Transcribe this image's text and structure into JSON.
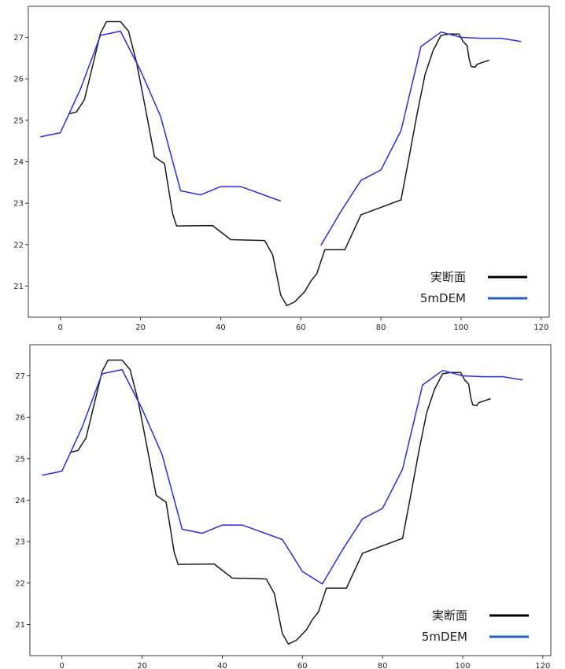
{
  "chart_data": [
    {
      "type": "line",
      "title": "",
      "xlabel": "",
      "ylabel": "",
      "xlim": [
        -8,
        122
      ],
      "ylim": [
        20.25,
        27.75
      ],
      "xticks": [
        0,
        20,
        40,
        60,
        80,
        100,
        120
      ],
      "yticks": [
        21,
        22,
        23,
        24,
        25,
        26,
        27
      ],
      "grid": false,
      "legend_position": "bottom-right",
      "legend": [
        {
          "label": "実断面",
          "color": "#000000"
        },
        {
          "label": "5mDEM",
          "color": "#1f5fbf"
        }
      ],
      "series": [
        {
          "name": "実断面",
          "color": "#1a1a1a",
          "segments": [
            [
              [
                2,
                25.15
              ],
              [
                4,
                25.2
              ],
              [
                6,
                25.5
              ],
              [
                10,
                27.1
              ],
              [
                11.5,
                27.38
              ],
              [
                15,
                27.38
              ],
              [
                17,
                27.15
              ],
              [
                19,
                26.4
              ],
              [
                21,
                25.4
              ],
              [
                23.5,
                24.12
              ],
              [
                26,
                23.95
              ],
              [
                28,
                22.75
              ],
              [
                29,
                22.45
              ],
              [
                38,
                22.46
              ],
              [
                42.5,
                22.12
              ],
              [
                51,
                22.1
              ],
              [
                53,
                21.75
              ],
              [
                55,
                20.78
              ],
              [
                56.5,
                20.53
              ],
              [
                58.5,
                20.62
              ],
              [
                61,
                20.87
              ],
              [
                62.5,
                21.12
              ],
              [
                64,
                21.3
              ],
              [
                66,
                21.88
              ],
              [
                71,
                21.88
              ],
              [
                75,
                22.72
              ],
              [
                85,
                23.08
              ],
              [
                87,
                24.1
              ],
              [
                89,
                25.15
              ],
              [
                91,
                26.1
              ],
              [
                93,
                26.68
              ],
              [
                95,
                27.05
              ],
              [
                97,
                27.08
              ],
              [
                99.5,
                27.08
              ],
              [
                100.5,
                26.9
              ],
              [
                101.5,
                26.8
              ],
              [
                102,
                26.48
              ],
              [
                102.5,
                26.3
              ],
              [
                103.5,
                26.28
              ],
              [
                104,
                26.35
              ],
              [
                107,
                26.45
              ]
            ]
          ]
        },
        {
          "name": "5mDEM",
          "color": "#2b2bea",
          "segments": [
            [
              [
                -5,
                24.6
              ],
              [
                0,
                24.7
              ],
              [
                5,
                25.75
              ],
              [
                10,
                27.05
              ],
              [
                15,
                27.15
              ],
              [
                20,
                26.2
              ],
              [
                25,
                25.1
              ],
              [
                30,
                23.3
              ],
              [
                35,
                23.2
              ],
              [
                40,
                23.4
              ],
              [
                45,
                23.4
              ],
              [
                55,
                23.05
              ]
            ],
            [
              [
                65,
                21.98
              ],
              [
                70,
                22.8
              ],
              [
                75,
                23.55
              ],
              [
                80,
                23.8
              ],
              [
                85,
                24.75
              ],
              [
                90,
                26.78
              ],
              [
                95,
                27.13
              ],
              [
                100,
                27.0
              ],
              [
                105,
                26.98
              ],
              [
                110,
                26.98
              ],
              [
                115,
                26.9
              ]
            ]
          ]
        }
      ]
    },
    {
      "type": "line",
      "title": "",
      "xlabel": "",
      "ylabel": "",
      "xlim": [
        -8,
        122
      ],
      "ylim": [
        20.25,
        27.75
      ],
      "xticks": [
        0,
        20,
        40,
        60,
        80,
        100,
        120
      ],
      "yticks": [
        21,
        22,
        23,
        24,
        25,
        26,
        27
      ],
      "grid": false,
      "legend_position": "bottom-right",
      "legend": [
        {
          "label": "実断面",
          "color": "#000000"
        },
        {
          "label": "5mDEM",
          "color": "#1f5fbf"
        }
      ],
      "series": [
        {
          "name": "実断面",
          "color": "#1a1a1a",
          "segments": [
            [
              [
                2,
                25.15
              ],
              [
                4,
                25.2
              ],
              [
                6,
                25.5
              ],
              [
                10,
                27.1
              ],
              [
                11.5,
                27.38
              ],
              [
                15,
                27.38
              ],
              [
                17,
                27.15
              ],
              [
                19,
                26.4
              ],
              [
                21,
                25.4
              ],
              [
                23.5,
                24.12
              ],
              [
                26,
                23.95
              ],
              [
                28,
                22.75
              ],
              [
                29,
                22.45
              ],
              [
                38,
                22.46
              ],
              [
                42.5,
                22.12
              ],
              [
                51,
                22.1
              ],
              [
                53,
                21.75
              ],
              [
                55,
                20.78
              ],
              [
                56.5,
                20.53
              ],
              [
                58.5,
                20.62
              ],
              [
                61,
                20.87
              ],
              [
                62.5,
                21.12
              ],
              [
                64,
                21.3
              ],
              [
                66,
                21.88
              ],
              [
                71,
                21.88
              ],
              [
                75,
                22.72
              ],
              [
                85,
                23.08
              ],
              [
                87,
                24.1
              ],
              [
                89,
                25.15
              ],
              [
                91,
                26.1
              ],
              [
                93,
                26.68
              ],
              [
                95,
                27.05
              ],
              [
                97,
                27.08
              ],
              [
                99.5,
                27.08
              ],
              [
                100.5,
                26.9
              ],
              [
                101.5,
                26.8
              ],
              [
                102,
                26.48
              ],
              [
                102.5,
                26.3
              ],
              [
                103.5,
                26.28
              ],
              [
                104,
                26.35
              ],
              [
                107,
                26.45
              ]
            ]
          ]
        },
        {
          "name": "5mDEM",
          "color": "#2b2bea",
          "segments": [
            [
              [
                -5,
                24.6
              ],
              [
                0,
                24.7
              ],
              [
                5,
                25.75
              ],
              [
                10,
                27.05
              ],
              [
                15,
                27.15
              ],
              [
                20,
                26.2
              ],
              [
                25,
                25.1
              ],
              [
                30,
                23.3
              ],
              [
                35,
                23.2
              ],
              [
                40,
                23.4
              ],
              [
                45,
                23.4
              ],
              [
                55,
                23.05
              ],
              [
                60,
                22.28
              ],
              [
                65,
                21.98
              ],
              [
                70,
                22.8
              ],
              [
                75,
                23.55
              ],
              [
                80,
                23.8
              ],
              [
                85,
                24.75
              ],
              [
                90,
                26.78
              ],
              [
                95,
                27.13
              ],
              [
                100,
                27.0
              ],
              [
                105,
                26.98
              ],
              [
                110,
                26.98
              ],
              [
                115,
                26.9
              ]
            ]
          ]
        }
      ]
    }
  ]
}
